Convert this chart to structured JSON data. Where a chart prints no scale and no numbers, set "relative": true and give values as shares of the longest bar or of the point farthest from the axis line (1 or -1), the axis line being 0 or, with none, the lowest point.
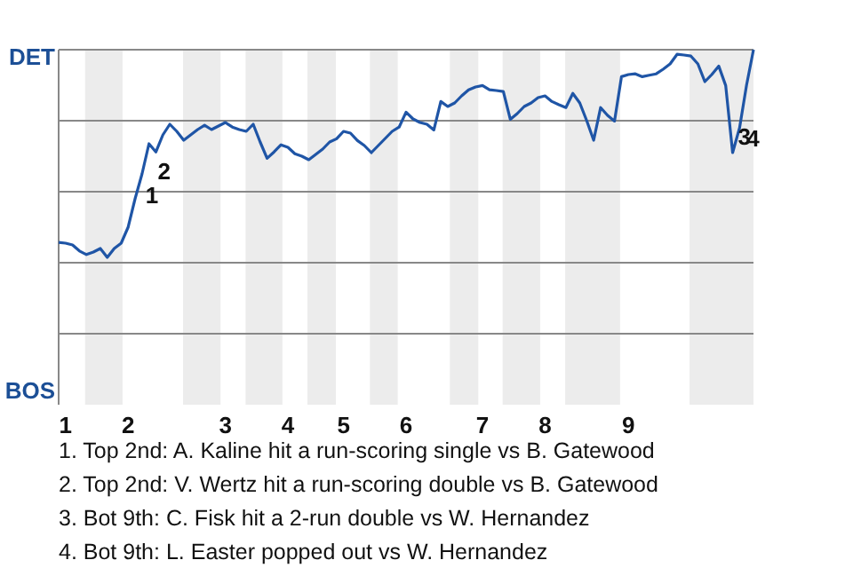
{
  "chart_data": {
    "type": "line",
    "relative": true,
    "categories": [
      null,
      "1",
      null,
      null,
      null,
      null,
      null,
      null,
      null,
      null,
      "2",
      null,
      null,
      null,
      null,
      null,
      null,
      null,
      null,
      null,
      null,
      null,
      null,
      null,
      "3",
      null,
      null,
      null,
      null,
      null,
      null,
      null,
      null,
      "4",
      null,
      null,
      null,
      null,
      null,
      null,
      null,
      "5",
      null,
      null,
      null,
      null,
      null,
      null,
      null,
      null,
      "6",
      null,
      null,
      null,
      null,
      null,
      null,
      null,
      null,
      null,
      null,
      "7",
      null,
      null,
      null,
      null,
      null,
      null,
      null,
      null,
      "8",
      null,
      null,
      null,
      null,
      null,
      null,
      null,
      null,
      null,
      null,
      null,
      "9",
      null,
      null,
      null,
      null,
      null,
      null,
      null,
      null,
      null,
      null,
      null,
      null,
      null,
      null,
      null,
      null,
      null,
      null
    ],
    "grid": "y",
    "marker": "none",
    "line_style": "solid",
    "series": [
      {
        "color": "#1f55a6",
        "values": [
          0.457,
          0.455,
          0.45,
          0.433,
          0.423,
          0.43,
          0.44,
          0.415,
          0.44,
          0.455,
          0.5,
          0.58,
          0.65,
          0.735,
          0.712,
          0.76,
          0.79,
          0.77,
          0.745,
          0.76,
          0.775,
          0.787,
          0.775,
          0.785,
          0.795,
          0.782,
          0.775,
          0.77,
          0.79,
          0.74,
          0.694,
          0.712,
          0.732,
          0.725,
          0.707,
          0.7,
          0.69,
          0.705,
          0.72,
          0.74,
          0.749,
          0.77,
          0.765,
          0.744,
          0.73,
          0.71,
          0.73,
          0.75,
          0.77,
          0.782,
          0.824,
          0.805,
          0.795,
          0.79,
          0.774,
          0.854,
          0.84,
          0.85,
          0.87,
          0.887,
          0.895,
          0.899,
          0.887,
          0.885,
          0.882,
          0.804,
          0.82,
          0.84,
          0.85,
          0.865,
          0.87,
          0.854,
          0.845,
          0.837,
          0.877,
          0.85,
          0.8,
          0.745,
          0.837,
          0.815,
          0.799,
          0.924,
          0.93,
          0.932,
          0.924,
          0.928,
          0.932,
          0.945,
          0.96,
          0.987,
          0.985,
          0.982,
          0.96,
          0.91,
          0.93,
          0.954,
          0.899,
          0.71,
          0.78,
          0.9,
          1
        ]
      }
    ],
    "annotations": [
      "DET",
      "BOS",
      "1",
      "2",
      "3",
      "4",
      "1. Top 2nd: A. Kaline hit a run-scoring single vs B. Gatewood",
      "2. Top 2nd: V. Wertz hit a run-scoring double vs B. Gatewood",
      "3. Bot 9th: C. Fisk hit a 2-run double vs W. Hernandez",
      "4. Bot 9th: L. Easter popped out vs W. Hernandez"
    ]
  }
}
